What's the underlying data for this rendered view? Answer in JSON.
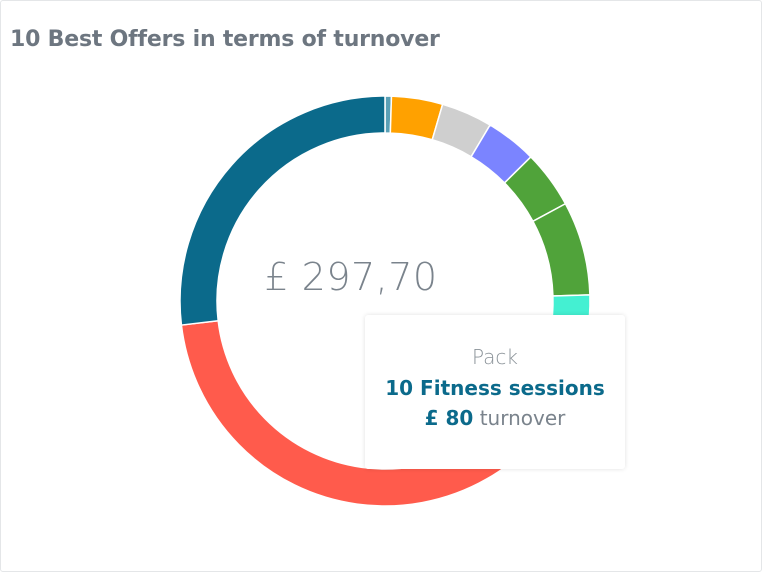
{
  "widget": {
    "title": "10 Best Offers in terms of turnover",
    "center_total": "£ 297,70"
  },
  "tooltip": {
    "category": "Pack",
    "name": "10 Fitness sessions",
    "value": "£ 80",
    "suffix": "turnover"
  },
  "chart_data": {
    "type": "pie",
    "subtype": "donut",
    "title": "10 Best Offers in terms of turnover",
    "total": 297.7,
    "slices": [
      {
        "value": 1.5,
        "color": "#5aa0b6"
      },
      {
        "value": 12,
        "color": "#ffa100"
      },
      {
        "value": 12,
        "color": "#cfcfcf"
      },
      {
        "value": 12,
        "color": "#7b84ff"
      },
      {
        "value": 13.5,
        "color": "#50a33a"
      },
      {
        "value": 22,
        "color": "#50a33a"
      },
      {
        "value": 20,
        "color": "#44f0d2"
      },
      {
        "value": 80,
        "color": "#0b6a8b",
        "label": "10 Fitness sessions"
      },
      {
        "value": 124.7,
        "color": "#ff5b4c"
      }
    ],
    "slice_order": [
      0,
      1,
      2,
      3,
      4,
      5,
      6,
      8,
      7
    ],
    "highlighted_slice": 7
  }
}
